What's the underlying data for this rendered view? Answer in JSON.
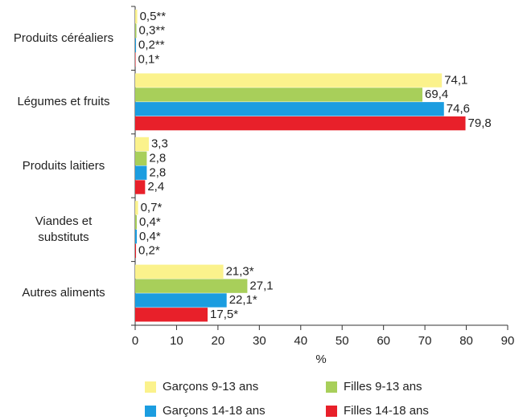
{
  "chart_data": {
    "type": "hbar",
    "categories": [
      "Produits céréaliers",
      "Légumes et fruits",
      "Produits laitiers",
      "Viandes et\nsubstituts",
      "Autres aliments"
    ],
    "series": [
      {
        "name": "Garçons 9-13 ans",
        "color": "#fbf28c",
        "values": [
          0.5,
          74.1,
          3.3,
          0.7,
          21.3
        ],
        "value_labels": [
          "0,5**",
          "74,1",
          "3,3",
          "0,7*",
          "21,3*"
        ]
      },
      {
        "name": "Filles 9-13 ans",
        "color": "#a8cf5a",
        "values": [
          0.3,
          69.4,
          2.8,
          0.4,
          27.1
        ],
        "value_labels": [
          "0,3**",
          "69,4",
          "2,8",
          "0,4*",
          "27,1"
        ]
      },
      {
        "name": "Garçons 14-18 ans",
        "color": "#1b9de0",
        "values": [
          0.2,
          74.6,
          2.8,
          0.4,
          22.1
        ],
        "value_labels": [
          "0,2**",
          "74,6",
          "2,8",
          "0,4*",
          "22,1*"
        ]
      },
      {
        "name": "Filles 14-18 ans",
        "color": "#e8202a",
        "values": [
          0.1,
          79.8,
          2.4,
          0.2,
          17.5
        ],
        "value_labels": [
          "0,1*",
          "79,8",
          "2,4",
          "0,2*",
          "17,5*"
        ]
      }
    ],
    "x_label": "%",
    "xlim": [
      0,
      90
    ],
    "xticks": [
      0,
      10,
      20,
      30,
      40,
      50,
      60,
      70,
      80,
      90
    ]
  }
}
